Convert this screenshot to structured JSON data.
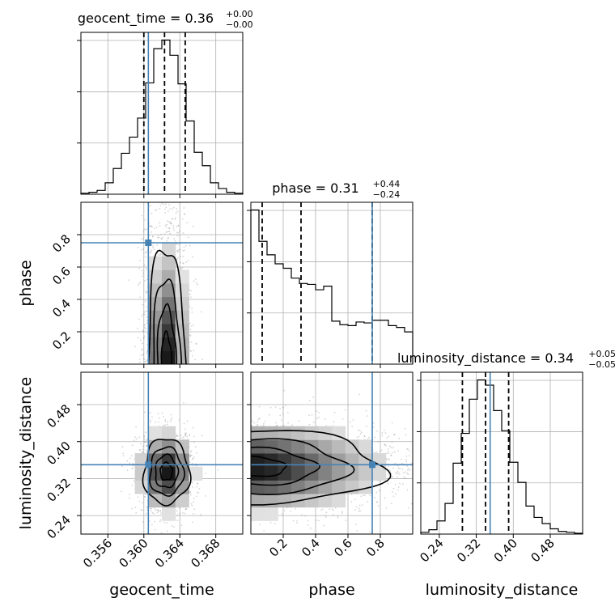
{
  "colors": {
    "truth": "#4682b4",
    "contour": "#000000",
    "grid": "#b0b0b0",
    "hist": "#000000",
    "quantile": "#000000"
  },
  "chart_data": {
    "type": "corner",
    "parameters": [
      "geocent_time",
      "phase",
      "luminosity_distance"
    ],
    "truths": {
      "geocent_time": 0.3605,
      "phase": 0.75,
      "luminosity_distance": 0.35
    },
    "ranges": {
      "geocent_time": [
        0.353,
        0.371
      ],
      "phase": [
        0.0,
        1.0
      ],
      "luminosity_distance": [
        0.2,
        0.55
      ]
    },
    "ticks": {
      "geocent_time": {
        "values": [
          0.356,
          0.36,
          0.364,
          0.368
        ],
        "labels": [
          "0.356",
          "0.360",
          "0.364",
          "0.368"
        ]
      },
      "phase": {
        "values": [
          0.2,
          0.4,
          0.6,
          0.8
        ],
        "labels": [
          "0.2",
          "0.4",
          "0.6",
          "0.8"
        ]
      },
      "luminosity_distance": {
        "values": [
          0.24,
          0.32,
          0.4,
          0.48
        ],
        "labels": [
          "0.24",
          "0.32",
          "0.40",
          "0.48"
        ]
      }
    },
    "quantiles": {
      "geocent_time": [
        0.36,
        0.3623,
        0.3646
      ],
      "phase": [
        0.07,
        0.31,
        0.75
      ],
      "luminosity_distance": [
        0.29,
        0.34,
        0.39
      ]
    },
    "titles": [
      {
        "param": "geocent_time",
        "main": "geocent_time = 0.36",
        "sup": "+0.00",
        "sub": "−0.00"
      },
      {
        "param": "phase",
        "main": "phase = 0.31",
        "sup": "+0.44",
        "sub": "−0.24"
      },
      {
        "param": "luminosity_distance",
        "main": "luminosity_distance = 0.34",
        "sup": "+0.05",
        "sub": "−0.05"
      }
    ],
    "histograms": {
      "geocent_time": {
        "edges": [
          0.353,
          0.3539,
          0.3548,
          0.3557,
          0.3566,
          0.3575,
          0.3584,
          0.3593,
          0.3602,
          0.3611,
          0.362,
          0.3629,
          0.3638,
          0.3647,
          0.3656,
          0.3665,
          0.3674,
          0.3683,
          0.3692,
          0.3701,
          0.371
        ],
        "counts": [
          1,
          2,
          4,
          12,
          27,
          43,
          60,
          80,
          117,
          153,
          162,
          146,
          116,
          77,
          44,
          30,
          12,
          6,
          2,
          1
        ]
      },
      "phase": {
        "edges": [
          0.0,
          0.05,
          0.1,
          0.15,
          0.2,
          0.25,
          0.3,
          0.35,
          0.4,
          0.45,
          0.5,
          0.55,
          0.6,
          0.65,
          0.7,
          0.75,
          0.8,
          0.85,
          0.9,
          0.95,
          1.0
        ],
        "counts": [
          172,
          137,
          122,
          112,
          107,
          96,
          90,
          89,
          83,
          87,
          48,
          44,
          43,
          47,
          46,
          49,
          49,
          43,
          41,
          36
        ]
      },
      "luminosity_distance": {
        "edges": [
          0.2,
          0.2175,
          0.235,
          0.2525,
          0.27,
          0.2875,
          0.305,
          0.3225,
          0.34,
          0.3575,
          0.375,
          0.3925,
          0.41,
          0.4275,
          0.445,
          0.4625,
          0.48,
          0.4975,
          0.515,
          0.5325,
          0.55
        ],
        "counts": [
          2,
          5,
          15,
          35,
          81,
          115,
          154,
          176,
          170,
          141,
          118,
          82,
          59,
          32,
          19,
          12,
          6,
          3,
          2,
          1
        ]
      }
    },
    "density_2d": [
      {
        "x": "geocent_time",
        "y": "phase",
        "center": [
          0.3625,
          0.0
        ],
        "spread": [
          0.0012,
          0.5
        ],
        "levels": [
          0.15,
          0.35,
          0.6,
          0.85
        ]
      },
      {
        "x": "geocent_time",
        "y": "luminosity_distance",
        "center": [
          0.3625,
          0.335
        ],
        "spread": [
          0.0016,
          0.045
        ],
        "levels": [
          0.15,
          0.35,
          0.6,
          0.85
        ]
      },
      {
        "x": "phase",
        "y": "luminosity_distance",
        "center": [
          0.0,
          0.345
        ],
        "spread": [
          0.45,
          0.05
        ],
        "levels": [
          0.15,
          0.35,
          0.6,
          0.85
        ]
      }
    ],
    "grid": true
  }
}
